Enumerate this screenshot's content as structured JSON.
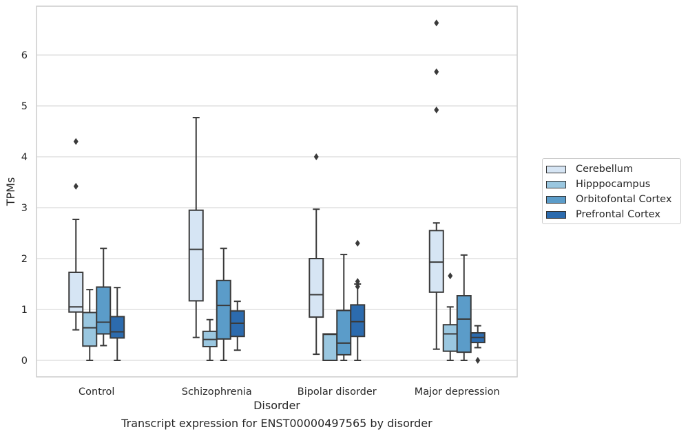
{
  "chart_data": {
    "type": "box",
    "title": "",
    "xlabel": "Disorder",
    "ylabel": "TPMs",
    "ylim": [
      -0.32,
      6.95
    ],
    "yticks": [
      0,
      1,
      2,
      3,
      4,
      5,
      6
    ],
    "grid": "horizontal",
    "legend_placement": "right, outside plot",
    "categories": [
      "Control",
      "Schizophrenia",
      "Bipolar disorder",
      "Major depression"
    ],
    "series": [
      {
        "name": "Cerebellum",
        "color": "#d6e5f4",
        "boxes": [
          {
            "whislo": 0.6,
            "q1": 0.95,
            "med": 1.05,
            "q3": 1.73,
            "whishi": 2.77,
            "fliers": [
              3.42,
              4.3
            ]
          },
          {
            "whislo": 0.45,
            "q1": 1.17,
            "med": 2.18,
            "q3": 2.95,
            "whishi": 4.77,
            "fliers": []
          },
          {
            "whislo": 0.12,
            "q1": 0.85,
            "med": 1.29,
            "q3": 2.0,
            "whishi": 2.97,
            "fliers": [
              4.0
            ]
          },
          {
            "whislo": 0.22,
            "q1": 1.34,
            "med": 1.93,
            "q3": 2.55,
            "whishi": 2.7,
            "fliers": [
              4.92,
              5.67,
              6.63
            ]
          }
        ]
      },
      {
        "name": "Hipppocampus",
        "color": "#9ac7e0",
        "boxes": [
          {
            "whislo": 0.0,
            "q1": 0.28,
            "med": 0.64,
            "q3": 0.94,
            "whishi": 1.39,
            "fliers": []
          },
          {
            "whislo": 0.0,
            "q1": 0.27,
            "med": 0.41,
            "q3": 0.57,
            "whishi": 0.8,
            "fliers": []
          },
          {
            "whislo": 0.0,
            "q1": 0.0,
            "med": 0.51,
            "q3": 0.52,
            "whishi": 0.52,
            "fliers": []
          },
          {
            "whislo": 0.0,
            "q1": 0.18,
            "med": 0.52,
            "q3": 0.7,
            "whishi": 1.05,
            "fliers": [
              1.66
            ]
          }
        ]
      },
      {
        "name": "Orbitofontal Cortex",
        "color": "#5b9cc9",
        "boxes": [
          {
            "whislo": 0.29,
            "q1": 0.52,
            "med": 0.75,
            "q3": 1.44,
            "whishi": 2.2,
            "fliers": []
          },
          {
            "whislo": 0.0,
            "q1": 0.42,
            "med": 1.08,
            "q3": 1.57,
            "whishi": 2.2,
            "fliers": []
          },
          {
            "whislo": 0.0,
            "q1": 0.11,
            "med": 0.34,
            "q3": 0.98,
            "whishi": 2.08,
            "fliers": []
          },
          {
            "whislo": 0.0,
            "q1": 0.16,
            "med": 0.81,
            "q3": 1.27,
            "whishi": 2.07,
            "fliers": []
          }
        ]
      },
      {
        "name": "Prefrontal Cortex",
        "color": "#2c6bae",
        "boxes": [
          {
            "whislo": 0.0,
            "q1": 0.44,
            "med": 0.56,
            "q3": 0.86,
            "whishi": 1.43,
            "fliers": []
          },
          {
            "whislo": 0.2,
            "q1": 0.47,
            "med": 0.73,
            "q3": 0.97,
            "whishi": 1.16,
            "fliers": []
          },
          {
            "whislo": 0.0,
            "q1": 0.47,
            "med": 0.76,
            "q3": 1.09,
            "whishi": 1.5,
            "fliers": [
              1.45,
              1.55,
              2.3
            ]
          },
          {
            "whislo": 0.25,
            "q1": 0.35,
            "med": 0.45,
            "q3": 0.54,
            "whishi": 0.68,
            "fliers": [
              0.0
            ]
          }
        ]
      }
    ]
  },
  "caption": "Transcript expression for ENST00000497565 by disorder"
}
